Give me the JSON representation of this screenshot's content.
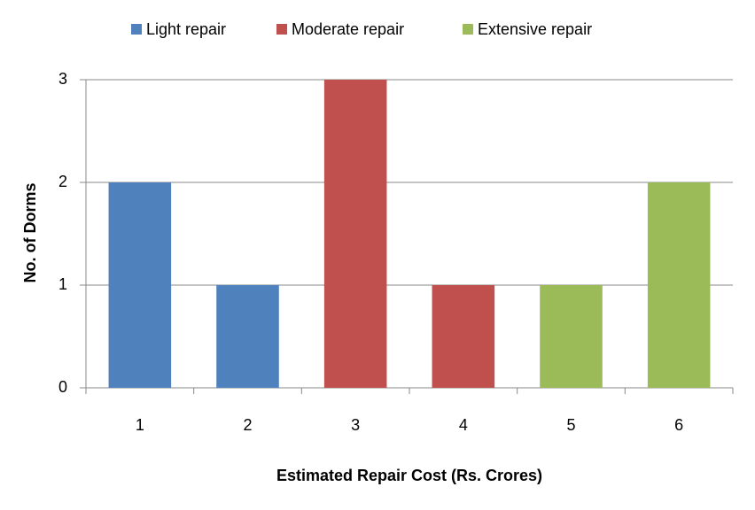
{
  "chart_data": {
    "type": "bar",
    "stacked": true,
    "xlabel": "Estimated Repair Cost (Rs. Crores)",
    "ylabel": "No. of Dorms",
    "categories": [
      "1",
      "2",
      "3",
      "4",
      "5",
      "6"
    ],
    "series": [
      {
        "name": "Light repair",
        "color": "#4f81bd",
        "values": [
          2,
          1,
          null,
          null,
          null,
          null
        ]
      },
      {
        "name": "Moderate repair",
        "color": "#c0504d",
        "values": [
          null,
          null,
          3,
          1,
          null,
          null
        ]
      },
      {
        "name": "Extensive repair",
        "color": "#9bbb59",
        "values": [
          null,
          null,
          null,
          null,
          1,
          2
        ]
      }
    ],
    "ylim": [
      0,
      3
    ],
    "yticks": [
      0,
      1,
      2,
      3
    ],
    "grid": true,
    "legend": "top"
  }
}
